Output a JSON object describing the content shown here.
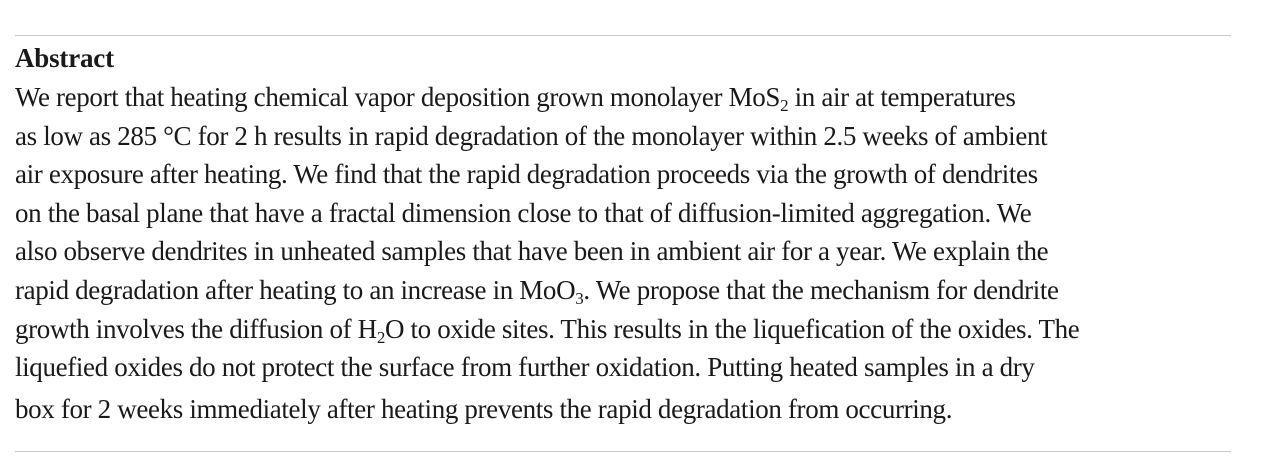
{
  "heading": "Abstract",
  "lines": [
    {
      "a": "We report that heating chemical vapor deposition grown monolayer MoS",
      "sub": "2",
      "b": " in air at temperatures"
    },
    {
      "a": "as low as 285 °C for 2 h results in rapid degradation of the monolayer within 2.5 weeks of ambient"
    },
    {
      "a": "air exposure after heating. We find that the rapid degradation proceeds via the growth of dendrites"
    },
    {
      "a": "on the basal plane that have a fractal dimension close to that of diffusion-limited aggregation. We"
    },
    {
      "a": "also observe dendrites in unheated samples that have been in ambient air for a year. We explain the"
    },
    {
      "a": "rapid degradation after heating to an increase in MoO",
      "sub": "3",
      "b": ". We propose that the mechanism for dendrite"
    },
    {
      "a": "growth involves the diffusion of H",
      "sub": "2",
      "b": "O to oxide sites. This results in the liquefication of the oxides. The"
    },
    {
      "a": "liquefied oxides do not protect the surface from further oxidation. Putting heated samples in a dry"
    },
    {
      "a": "box for 2 weeks immediately after heating prevents the rapid degradation from occurring."
    }
  ]
}
